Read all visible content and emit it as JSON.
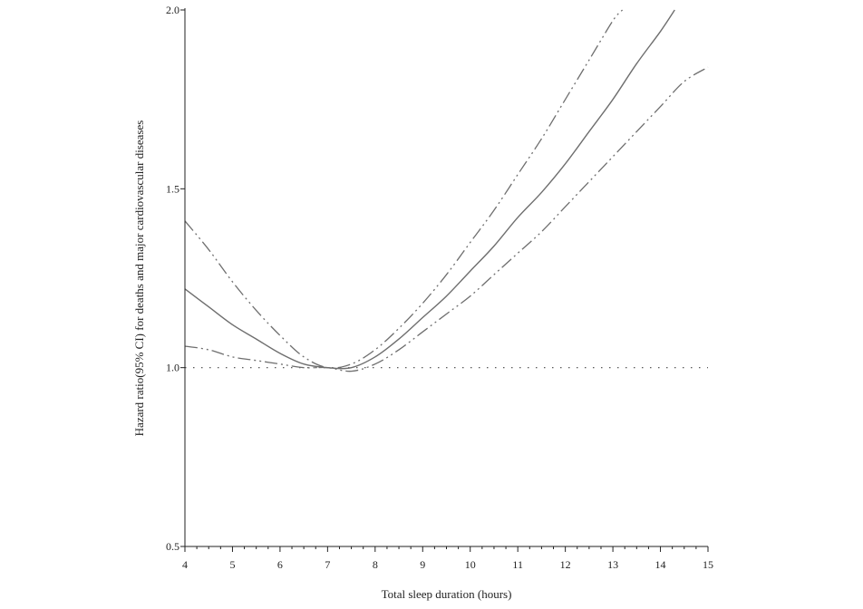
{
  "chart_data": {
    "type": "line",
    "xlabel": "Total sleep duration (hours)",
    "ylabel": "Hazard ratio(95% CI) for deaths and major cardiovascular diseases",
    "xlim": [
      4,
      15
    ],
    "ylim": [
      0.5,
      2.0
    ],
    "xticks": [
      4,
      5,
      6,
      7,
      8,
      9,
      10,
      11,
      12,
      13,
      14,
      15
    ],
    "xtick_labels": [
      "4",
      "5",
      "6",
      "7",
      "8",
      "9",
      "10",
      "11",
      "12",
      "13",
      "14",
      "15"
    ],
    "yticks": [
      0.5,
      1.0,
      1.5,
      2.0
    ],
    "ytick_labels": [
      "0.5",
      "1.0",
      "1.5",
      "2.0"
    ],
    "x_minor_step": 0.25,
    "reference_line": {
      "y": 1.0,
      "style": "dotted"
    },
    "grid": false,
    "series": [
      {
        "role": "estimate",
        "style": "solid",
        "color": "#6e6e6e",
        "x": [
          4,
          4.5,
          5,
          5.5,
          6,
          6.5,
          7,
          7.5,
          8,
          8.5,
          9,
          9.5,
          10,
          10.5,
          11,
          11.5,
          12,
          12.5,
          13,
          13.5,
          14,
          14.3
        ],
        "y": [
          1.22,
          1.17,
          1.12,
          1.08,
          1.04,
          1.01,
          1.0,
          1.0,
          1.03,
          1.08,
          1.14,
          1.2,
          1.27,
          1.34,
          1.42,
          1.49,
          1.57,
          1.66,
          1.75,
          1.85,
          1.94,
          2.0
        ]
      },
      {
        "role": "upper-ci",
        "style": "dash-dot-dot",
        "color": "#6e6e6e",
        "x": [
          4,
          4.5,
          5,
          5.5,
          6,
          6.5,
          7,
          7.5,
          8,
          8.5,
          9,
          9.5,
          10,
          10.5,
          11,
          11.5,
          12,
          12.5,
          13,
          13.2
        ],
        "y": [
          1.41,
          1.33,
          1.24,
          1.16,
          1.09,
          1.03,
          1.0,
          1.01,
          1.05,
          1.11,
          1.18,
          1.26,
          1.35,
          1.44,
          1.54,
          1.64,
          1.75,
          1.86,
          1.97,
          2.0
        ]
      },
      {
        "role": "lower-ci",
        "style": "dash-dot-dot",
        "color": "#6e6e6e",
        "x": [
          4,
          4.5,
          5,
          5.5,
          6,
          6.5,
          7,
          7.5,
          8,
          8.5,
          9,
          9.5,
          10,
          10.5,
          11,
          11.5,
          12,
          12.5,
          13,
          13.5,
          14,
          14.5,
          15
        ],
        "y": [
          1.06,
          1.05,
          1.03,
          1.02,
          1.01,
          1.0,
          1.0,
          0.99,
          1.01,
          1.05,
          1.1,
          1.15,
          1.2,
          1.26,
          1.32,
          1.38,
          1.45,
          1.52,
          1.59,
          1.66,
          1.73,
          1.8,
          1.84
        ]
      }
    ]
  }
}
